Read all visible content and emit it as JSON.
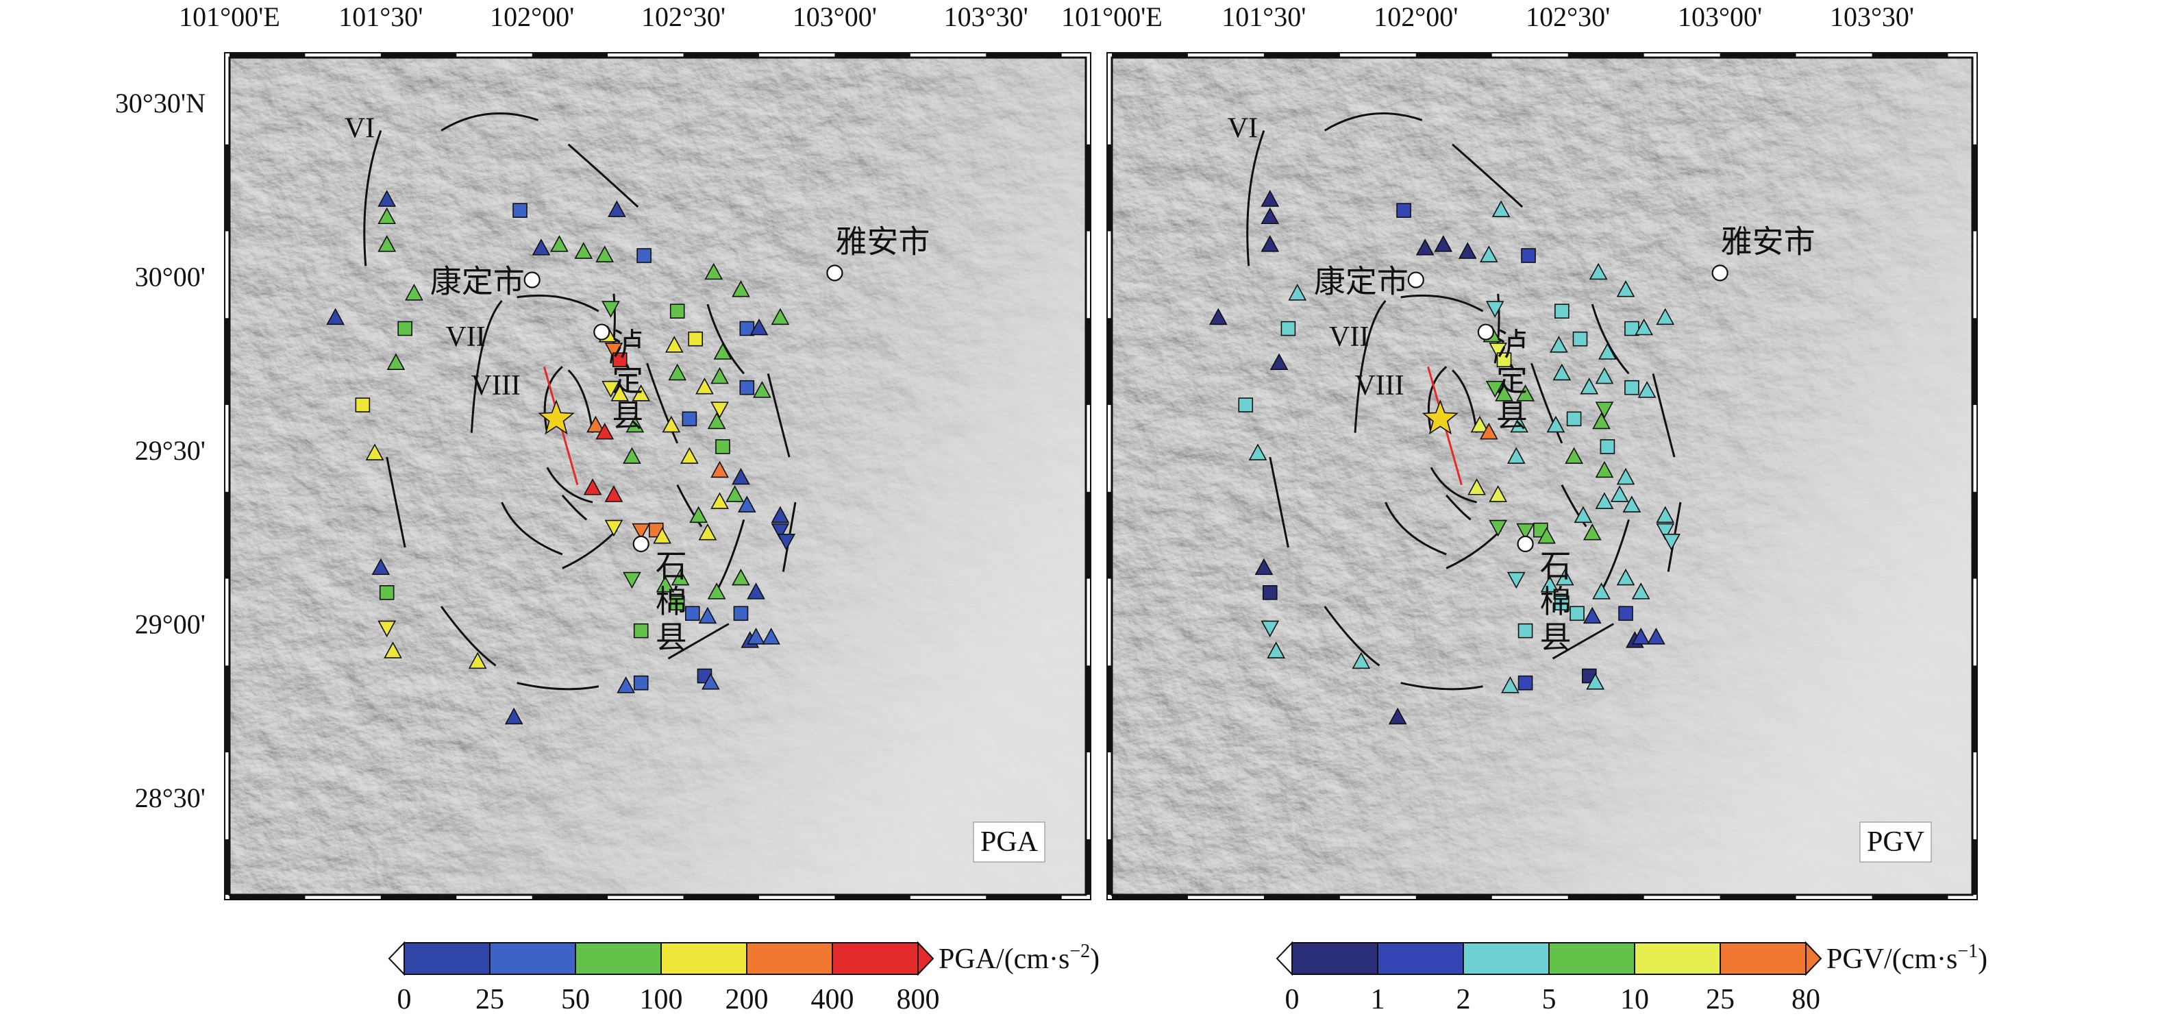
{
  "colors": {
    "pga_scale": [
      "#2f46a8",
      "#3d63c6",
      "#63c24a",
      "#efe63a",
      "#f07830",
      "#e42a2a"
    ],
    "pgv_scale": [
      "#2a2e78",
      "#3446b4",
      "#6ed1d1",
      "#63c24a",
      "#e7ef50",
      "#f07830"
    ],
    "fault": "#111111",
    "rupture": "#e42a2a",
    "epicenter": "#f2d21c",
    "city": "#ffffff"
  },
  "map": {
    "lon_ticks": [
      "101°00'E",
      "101°30'",
      "102°00'",
      "102°30'",
      "103°00'",
      "103°30'"
    ],
    "lat_ticks": [
      "30°30'N",
      "30°00'",
      "29°30'",
      "29°00'",
      "28°30'"
    ],
    "cities": [
      {
        "name": "康定市",
        "lon": 102.0,
        "lat": 29.99
      },
      {
        "name": "雅安市",
        "lon": 103.0,
        "lat": 30.01
      },
      {
        "name": "泸定县",
        "lon": 102.23,
        "lat": 29.84
      },
      {
        "name": "石棉县",
        "lon": 102.36,
        "lat": 29.23
      }
    ],
    "intensity_labels": [
      "VI",
      "VII",
      "VIII"
    ],
    "epicenter": {
      "lon": 102.08,
      "lat": 29.59
    }
  },
  "panels": [
    {
      "id": "pga",
      "title": "PGA",
      "scale_key": "pga_scale"
    },
    {
      "id": "pgv",
      "title": "PGV",
      "scale_key": "pgv_scale"
    }
  ],
  "colorbars": [
    {
      "id": "pga",
      "label": "PGA/(cm·s",
      "sup": "−2",
      "label_end": ")",
      "ticks": [
        "0",
        "25",
        "50",
        "100",
        "200",
        "400",
        "800"
      ]
    },
    {
      "id": "pgv",
      "label": "PGV/(cm·s",
      "sup": "−1",
      "label_end": ")",
      "ticks": [
        "0",
        "1",
        "2",
        "5",
        "10",
        "25",
        "80"
      ]
    }
  ],
  "stations": [
    {
      "lon": 101.52,
      "lat": 30.22,
      "s": "tri",
      "pga": 0,
      "pgv": 0
    },
    {
      "lon": 101.52,
      "lat": 30.17,
      "s": "tri",
      "pga": 2,
      "pgv": 0
    },
    {
      "lon": 101.52,
      "lat": 30.09,
      "s": "tri",
      "pga": 2,
      "pgv": 0
    },
    {
      "lon": 101.35,
      "lat": 29.88,
      "s": "tri",
      "pga": 0,
      "pgv": 0
    },
    {
      "lon": 101.61,
      "lat": 29.95,
      "s": "tri",
      "pga": 2,
      "pgv": 2
    },
    {
      "lon": 101.58,
      "lat": 29.85,
      "s": "sq",
      "pga": 2,
      "pgv": 2
    },
    {
      "lon": 101.55,
      "lat": 29.75,
      "s": "tri",
      "pga": 2,
      "pgv": 0
    },
    {
      "lon": 101.44,
      "lat": 29.63,
      "s": "sq",
      "pga": 3,
      "pgv": 2
    },
    {
      "lon": 101.48,
      "lat": 29.49,
      "s": "tri",
      "pga": 3,
      "pgv": 2
    },
    {
      "lon": 101.5,
      "lat": 29.16,
      "s": "tri",
      "pga": 0,
      "pgv": 0
    },
    {
      "lon": 101.52,
      "lat": 29.09,
      "s": "sq",
      "pga": 2,
      "pgv": 0
    },
    {
      "lon": 101.52,
      "lat": 28.99,
      "s": "inv",
      "pga": 3,
      "pgv": 2
    },
    {
      "lon": 101.54,
      "lat": 28.92,
      "s": "tri",
      "pga": 3,
      "pgv": 2
    },
    {
      "lon": 101.82,
      "lat": 28.89,
      "s": "tri",
      "pga": 3,
      "pgv": 2
    },
    {
      "lon": 101.94,
      "lat": 28.73,
      "s": "tri",
      "pga": 0,
      "pgv": 0
    },
    {
      "lon": 101.96,
      "lat": 30.19,
      "s": "sq",
      "pga": 1,
      "pgv": 1
    },
    {
      "lon": 102.03,
      "lat": 30.08,
      "s": "tri",
      "pga": 0,
      "pgv": 0
    },
    {
      "lon": 102.09,
      "lat": 30.09,
      "s": "tri",
      "pga": 2,
      "pgv": 0
    },
    {
      "lon": 102.17,
      "lat": 30.07,
      "s": "tri",
      "pga": 2,
      "pgv": 0
    },
    {
      "lon": 102.24,
      "lat": 30.06,
      "s": "tri",
      "pga": 2,
      "pgv": 2
    },
    {
      "lon": 102.28,
      "lat": 30.19,
      "s": "tri",
      "pga": 0,
      "pgv": 2
    },
    {
      "lon": 102.37,
      "lat": 30.06,
      "s": "sq",
      "pga": 1,
      "pgv": 1
    },
    {
      "lon": 102.26,
      "lat": 29.91,
      "s": "inv",
      "pga": 2,
      "pgv": 2
    },
    {
      "lon": 102.25,
      "lat": 29.83,
      "s": "tri",
      "pga": 3,
      "pgv": 3
    },
    {
      "lon": 102.27,
      "lat": 29.79,
      "s": "inv",
      "pga": 4,
      "pgv": 4
    },
    {
      "lon": 102.29,
      "lat": 29.76,
      "s": "sq",
      "pga": 5,
      "pgv": 4
    },
    {
      "lon": 102.26,
      "lat": 29.68,
      "s": "inv",
      "pga": 3,
      "pgv": 3
    },
    {
      "lon": 102.21,
      "lat": 29.57,
      "s": "tri",
      "pga": 4,
      "pgv": 4
    },
    {
      "lon": 102.24,
      "lat": 29.55,
      "s": "tri",
      "pga": 5,
      "pgv": 5
    },
    {
      "lon": 102.29,
      "lat": 29.66,
      "s": "tri",
      "pga": 3,
      "pgv": 3
    },
    {
      "lon": 102.36,
      "lat": 29.66,
      "s": "tri",
      "pga": 3,
      "pgv": 3
    },
    {
      "lon": 102.34,
      "lat": 29.57,
      "s": "tri",
      "pga": 2,
      "pgv": 2
    },
    {
      "lon": 102.33,
      "lat": 29.48,
      "s": "tri",
      "pga": 2,
      "pgv": 2
    },
    {
      "lon": 102.27,
      "lat": 29.37,
      "s": "tri",
      "pga": 5,
      "pgv": 4
    },
    {
      "lon": 102.27,
      "lat": 29.28,
      "s": "inv",
      "pga": 3,
      "pgv": 3
    },
    {
      "lon": 102.36,
      "lat": 29.27,
      "s": "inv",
      "pga": 4,
      "pgv": 3
    },
    {
      "lon": 102.41,
      "lat": 29.27,
      "s": "sq",
      "pga": 4,
      "pgv": 3
    },
    {
      "lon": 102.43,
      "lat": 29.25,
      "s": "tri",
      "pga": 3,
      "pgv": 3
    },
    {
      "lon": 102.48,
      "lat": 29.9,
      "s": "sq",
      "pga": 2,
      "pgv": 2
    },
    {
      "lon": 102.47,
      "lat": 29.8,
      "s": "tri",
      "pga": 3,
      "pgv": 2
    },
    {
      "lon": 102.54,
      "lat": 29.82,
      "s": "sq",
      "pga": 3,
      "pgv": 2
    },
    {
      "lon": 102.48,
      "lat": 29.72,
      "s": "tri",
      "pga": 2,
      "pgv": 2
    },
    {
      "lon": 102.52,
      "lat": 29.59,
      "s": "sq",
      "pga": 1,
      "pgv": 2
    },
    {
      "lon": 102.46,
      "lat": 29.57,
      "s": "tri",
      "pga": 3,
      "pgv": 2
    },
    {
      "lon": 102.52,
      "lat": 29.48,
      "s": "tri",
      "pga": 3,
      "pgv": 3
    },
    {
      "lon": 102.57,
      "lat": 29.68,
      "s": "tri",
      "pga": 3,
      "pgv": 2
    },
    {
      "lon": 102.63,
      "lat": 29.78,
      "s": "tri",
      "pga": 2,
      "pgv": 2
    },
    {
      "lon": 102.62,
      "lat": 29.71,
      "s": "tri",
      "pga": 2,
      "pgv": 2
    },
    {
      "lon": 102.62,
      "lat": 29.62,
      "s": "inv",
      "pga": 3,
      "pgv": 3
    },
    {
      "lon": 102.61,
      "lat": 29.58,
      "s": "tri",
      "pga": 2,
      "pgv": 3
    },
    {
      "lon": 102.63,
      "lat": 29.51,
      "s": "sq",
      "pga": 2,
      "pgv": 2
    },
    {
      "lon": 102.62,
      "lat": 29.44,
      "s": "tri",
      "pga": 4,
      "pgv": 3
    },
    {
      "lon": 102.6,
      "lat": 30.01,
      "s": "tri",
      "pga": 2,
      "pgv": 2
    },
    {
      "lon": 102.69,
      "lat": 29.96,
      "s": "tri",
      "pga": 2,
      "pgv": 2
    },
    {
      "lon": 102.71,
      "lat": 29.85,
      "s": "sq",
      "pga": 1,
      "pgv": 2
    },
    {
      "lon": 102.75,
      "lat": 29.85,
      "s": "tri",
      "pga": 0,
      "pgv": 2
    },
    {
      "lon": 102.82,
      "lat": 29.88,
      "s": "tri",
      "pga": 2,
      "pgv": 2
    },
    {
      "lon": 102.71,
      "lat": 29.68,
      "s": "sq",
      "pga": 1,
      "pgv": 2
    },
    {
      "lon": 102.76,
      "lat": 29.67,
      "s": "tri",
      "pga": 2,
      "pgv": 2
    },
    {
      "lon": 102.69,
      "lat": 29.42,
      "s": "tri",
      "pga": 0,
      "pgv": 2
    },
    {
      "lon": 102.67,
      "lat": 29.37,
      "s": "tri",
      "pga": 2,
      "pgv": 2
    },
    {
      "lon": 102.62,
      "lat": 29.35,
      "s": "tri",
      "pga": 3,
      "pgv": 2
    },
    {
      "lon": 102.55,
      "lat": 29.31,
      "s": "tri",
      "pga": 2,
      "pgv": 2
    },
    {
      "lon": 102.58,
      "lat": 29.26,
      "s": "tri",
      "pga": 3,
      "pgv": 3
    },
    {
      "lon": 102.71,
      "lat": 29.34,
      "s": "tri",
      "pga": 1,
      "pgv": 2
    },
    {
      "lon": 102.82,
      "lat": 29.31,
      "s": "tri",
      "pga": 0,
      "pgv": 2
    },
    {
      "lon": 102.82,
      "lat": 29.27,
      "s": "inv",
      "pga": 0,
      "pgv": 2
    },
    {
      "lon": 102.84,
      "lat": 29.24,
      "s": "inv",
      "pga": 0,
      "pgv": 2
    },
    {
      "lon": 102.69,
      "lat": 29.13,
      "s": "tri",
      "pga": 2,
      "pgv": 2
    },
    {
      "lon": 102.74,
      "lat": 29.09,
      "s": "tri",
      "pga": 0,
      "pgv": 2
    },
    {
      "lon": 102.61,
      "lat": 29.09,
      "s": "tri",
      "pga": 2,
      "pgv": 2
    },
    {
      "lon": 102.53,
      "lat": 29.03,
      "s": "sq",
      "pga": 1,
      "pgv": 2
    },
    {
      "lon": 102.58,
      "lat": 29.02,
      "s": "tri",
      "pga": 1,
      "pgv": 1
    },
    {
      "lon": 102.69,
      "lat": 29.03,
      "s": "sq",
      "pga": 1,
      "pgv": 1
    },
    {
      "lon": 102.72,
      "lat": 28.95,
      "s": "tri",
      "pga": 0,
      "pgv": 0
    },
    {
      "lon": 102.74,
      "lat": 28.96,
      "s": "tri",
      "pga": 1,
      "pgv": 1
    },
    {
      "lon": 102.79,
      "lat": 28.96,
      "s": "tri",
      "pga": 1,
      "pgv": 1
    },
    {
      "lon": 102.48,
      "lat": 29.06,
      "s": "sq",
      "pga": 2,
      "pgv": 2
    },
    {
      "lon": 102.44,
      "lat": 29.11,
      "s": "tri",
      "pga": 2,
      "pgv": 2
    },
    {
      "lon": 102.49,
      "lat": 29.13,
      "s": "tri",
      "pga": 2,
      "pgv": 2
    },
    {
      "lon": 102.33,
      "lat": 29.13,
      "s": "inv",
      "pga": 2,
      "pgv": 2
    },
    {
      "lon": 102.36,
      "lat": 28.98,
      "s": "sq",
      "pga": 2,
      "pgv": 2
    },
    {
      "lon": 102.36,
      "lat": 28.83,
      "s": "sq",
      "pga": 1,
      "pgv": 1
    },
    {
      "lon": 102.31,
      "lat": 28.82,
      "s": "tri",
      "pga": 1,
      "pgv": 2
    },
    {
      "lon": 102.57,
      "lat": 28.85,
      "s": "sq",
      "pga": 0,
      "pgv": 0
    },
    {
      "lon": 102.59,
      "lat": 28.83,
      "s": "tri",
      "pga": 1,
      "pgv": 2
    },
    {
      "lon": 102.2,
      "lat": 29.39,
      "s": "tri",
      "pga": 5,
      "pgv": 4
    }
  ]
}
